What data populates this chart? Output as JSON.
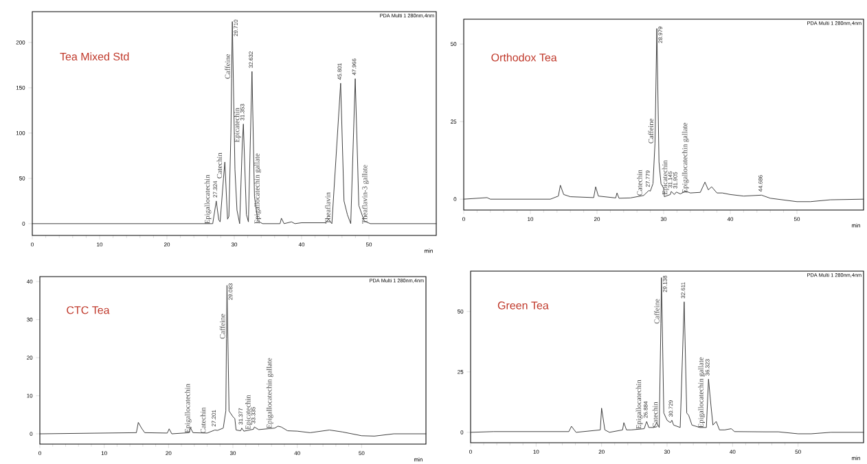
{
  "chart_data": [
    {
      "type": "line",
      "title": "Tea Mixed Std",
      "xlabel": "min",
      "xlim": [
        0,
        60
      ],
      "xticks": [
        0,
        10,
        20,
        30,
        40,
        50
      ],
      "ylim": [
        -13,
        234
      ],
      "yticks": [
        0,
        50,
        100,
        150,
        200
      ],
      "series": [
        {
          "color": "#333333",
          "x": [
            0,
            10,
            20,
            26.8,
            27.324,
            27.7,
            27.9,
            28.4,
            28.6,
            29.0,
            29.2,
            29.5,
            29.6,
            29.71,
            30.1,
            30.4,
            30.8,
            31.2,
            31.353,
            31.8,
            32.1,
            32.632,
            33.0,
            33.5,
            34.2,
            36.8,
            37.0,
            37.4,
            38.5,
            39.0,
            40.0,
            43.6,
            44.0,
            44.5,
            45.801,
            46.3,
            46.8,
            47.3,
            47.966,
            48.5,
            49.3,
            50.2,
            55,
            60
          ],
          "values": [
            0,
            0,
            0,
            0,
            25,
            4,
            2,
            50,
            68,
            5,
            8,
            100,
            160,
            223,
            60,
            15,
            0,
            90,
            110,
            10,
            2,
            168,
            30,
            3,
            0,
            0,
            6,
            0,
            2,
            0,
            1,
            1,
            5,
            0,
            155,
            25,
            10,
            0,
            160,
            20,
            3,
            0,
            0,
            0
          ]
        }
      ],
      "annotations": [
        "PDA Multi 1 280nm,4nm",
        {
          "text": "Epigallocatechin",
          "x": 26.8,
          "y": 0
        },
        {
          "text": "Catechin",
          "x": 28.4,
          "y": 50
        },
        {
          "text": "Caffeine",
          "x": 29.6,
          "y": 160
        },
        {
          "text": "Epicatechin",
          "x": 31.2,
          "y": 90
        },
        {
          "text": "Epigallocatechin gallate",
          "x": 34.2,
          "y": 0
        },
        {
          "text": "Theaflavin",
          "x": 44.5,
          "y": 0
        },
        {
          "text": "Theaflavin-3 gallate",
          "x": 50.2,
          "y": 0
        },
        {
          "text": "27.324",
          "x": 27.324,
          "y": 25
        },
        {
          "text": "29.710",
          "x": 29.71,
          "y": 223
        },
        {
          "text": "31.353",
          "x": 31.353,
          "y": 110
        },
        {
          "text": "32.632",
          "x": 32.632,
          "y": 168
        },
        {
          "text": "45.801",
          "x": 45.801,
          "y": 155
        },
        {
          "text": "47.966",
          "x": 47.966,
          "y": 160
        }
      ]
    },
    {
      "type": "line",
      "title": "Orthodox Tea",
      "xlabel": "min",
      "xlim": [
        0,
        60
      ],
      "xticks": [
        0,
        10,
        20,
        30,
        40,
        50
      ],
      "ylim": [
        -3.5,
        58
      ],
      "yticks": [
        0,
        25,
        50
      ],
      "series": [
        {
          "color": "#333333",
          "x": [
            0,
            3.5,
            4,
            13,
            14.2,
            14.5,
            15,
            16,
            19.5,
            19.8,
            20.2,
            22.8,
            23,
            23.3,
            25,
            27,
            27.779,
            28.0,
            28.4,
            28.7,
            28.979,
            29.3,
            29.6,
            30,
            30.1,
            31,
            31.145,
            31.6,
            31.905,
            32.5,
            33.3,
            34,
            35.5,
            36.2,
            36.7,
            37.2,
            38,
            38.8,
            40,
            42,
            44.686,
            46,
            50,
            52,
            55,
            60
          ],
          "values": [
            0,
            0.5,
            0,
            0,
            1,
            4.5,
            1.5,
            0.8,
            0.5,
            4,
            1,
            0.4,
            2,
            0.3,
            0.4,
            1.2,
            2.8,
            2.6,
            5,
            18,
            55,
            12,
            5,
            3.5,
            0.8,
            1.5,
            2.5,
            1.5,
            2.3,
            1.7,
            2.6,
            2,
            2.2,
            5.5,
            3,
            4,
            2,
            2,
            1.5,
            1,
            1.3,
            0.3,
            -0.8,
            -0.8,
            -0.2,
            0
          ]
        }
      ],
      "annotations": [
        "PDA Multi 1 280nm,4nm",
        {
          "text": "Catechin",
          "x": 27,
          "y": 1.2
        },
        {
          "text": "Caffeine",
          "x": 28.7,
          "y": 18
        },
        {
          "text": "Epicatechin",
          "x": 31,
          "y": 1.5
        },
        {
          "text": "Epigallocatechin gallate",
          "x": 34,
          "y": 2
        },
        {
          "text": "27.779",
          "x": 27.779,
          "y": 2.8
        },
        {
          "text": "28.979",
          "x": 28.979,
          "y": 55
        },
        {
          "text": "31.145",
          "x": 31.145,
          "y": 2.5
        },
        {
          "text": "31.905",
          "x": 31.905,
          "y": 2.3
        },
        {
          "text": "44.686",
          "x": 44.686,
          "y": 1.3
        }
      ]
    },
    {
      "type": "line",
      "title": "CTC Tea",
      "xlabel": "min",
      "xlim": [
        0,
        60
      ],
      "xticks": [
        0,
        10,
        20,
        30,
        40,
        50
      ],
      "ylim": [
        -2.7,
        41.3
      ],
      "yticks": [
        0,
        10,
        20,
        30,
        40
      ],
      "series": [
        {
          "color": "#333333",
          "x": [
            0,
            15,
            15.3,
            15.8,
            16.3,
            19.8,
            20.1,
            20.5,
            23.2,
            23.4,
            23.8,
            26,
            27.201,
            27.6,
            28.5,
            28.9,
            29.0,
            29.083,
            29.4,
            30,
            30.3,
            30.5,
            31.2,
            31.377,
            31.7,
            33.2,
            33.335,
            34,
            36.5,
            37,
            37.5,
            38.5,
            40,
            42,
            45,
            47,
            50,
            52,
            55,
            60
          ],
          "values": [
            0,
            0.3,
            3,
            1.5,
            0.3,
            0.2,
            1.3,
            0,
            0.3,
            1.6,
            0.3,
            0.2,
            1.0,
            0.9,
            1.5,
            6,
            25,
            39,
            6,
            4.5,
            4,
            1,
            0.8,
            1.5,
            0.7,
            1.2,
            1.8,
            1.1,
            1.5,
            2,
            1.8,
            0.8,
            0.7,
            0.3,
            1,
            0.5,
            -0.5,
            -0.6,
            0,
            0
          ]
        }
      ],
      "annotations": [
        "PDA Multi 1 280nm,4nm",
        {
          "text": "Epigallocatechin",
          "x": 23.8,
          "y": 0.3
        },
        {
          "text": "Catechin",
          "x": 26,
          "y": 0.2
        },
        {
          "text": "Caffeine",
          "x": 29.0,
          "y": 25
        },
        {
          "text": "Epicatechin",
          "x": 33.2,
          "y": 1.2
        },
        {
          "text": "Epigallocatechin gallate",
          "x": 36.5,
          "y": 1.5
        },
        {
          "text": "27.201",
          "x": 27.201,
          "y": 1.0
        },
        {
          "text": "29.083",
          "x": 29.083,
          "y": 39
        },
        {
          "text": "31.377",
          "x": 31.377,
          "y": 1.5
        },
        {
          "text": "33.335",
          "x": 33.335,
          "y": 1.8
        }
      ]
    },
    {
      "type": "line",
      "title": "Green Tea",
      "xlabel": "min",
      "xlim": [
        0,
        60
      ],
      "xticks": [
        0,
        10,
        20,
        30,
        40,
        50
      ],
      "ylim": [
        -4.3,
        66.7
      ],
      "yticks": [
        0,
        25,
        50
      ],
      "series": [
        {
          "color": "#333333",
          "x": [
            0,
            3.5,
            15,
            15.4,
            16.1,
            19.8,
            20,
            20.5,
            21.2,
            23.2,
            23.4,
            23.8,
            24.5,
            26.5,
            26.884,
            27.2,
            28,
            28.4,
            28.8,
            29.05,
            29.138,
            29.5,
            30,
            30.5,
            30.729,
            31,
            32,
            32.611,
            33,
            33.3,
            33.8,
            35,
            36,
            36.323,
            36.7,
            37,
            37.5,
            38,
            38.8,
            39.8,
            40.3,
            45,
            47,
            50,
            52,
            55,
            60
          ],
          "values": [
            0,
            0.3,
            0.3,
            2.5,
            0,
            1,
            10,
            1,
            0,
            1,
            4,
            1,
            1,
            1.5,
            4.5,
            2,
            2,
            4,
            2,
            45,
            64,
            8,
            5,
            4,
            5,
            3,
            2,
            54,
            8,
            7,
            3,
            2,
            2,
            22,
            11,
            3,
            4.5,
            1,
            1,
            1.5,
            0.3,
            0.2,
            0.2,
            -0.6,
            -0.6,
            0,
            0
          ]
        }
      ],
      "annotations": [
        "PDA Multi 1 280nm,4nm",
        {
          "text": "Epigallocatechin",
          "x": 26.5,
          "y": 1.5
        },
        {
          "text": "Catechin",
          "x": 28.8,
          "y": 2
        },
        {
          "text": "Caffeine",
          "x": 29.05,
          "y": 45
        },
        {
          "text": "Epigallocatechin gallate",
          "x": 36,
          "y": 2
        },
        {
          "text": "26.884",
          "x": 26.884,
          "y": 4.5
        },
        {
          "text": "29.138",
          "x": 29.138,
          "y": 64
        },
        {
          "text": "30.729",
          "x": 30.729,
          "y": 5
        },
        {
          "text": "32.611",
          "x": 32.611,
          "y": 54
        },
        {
          "text": "36.323",
          "x": 36.323,
          "y": 22
        }
      ]
    }
  ]
}
